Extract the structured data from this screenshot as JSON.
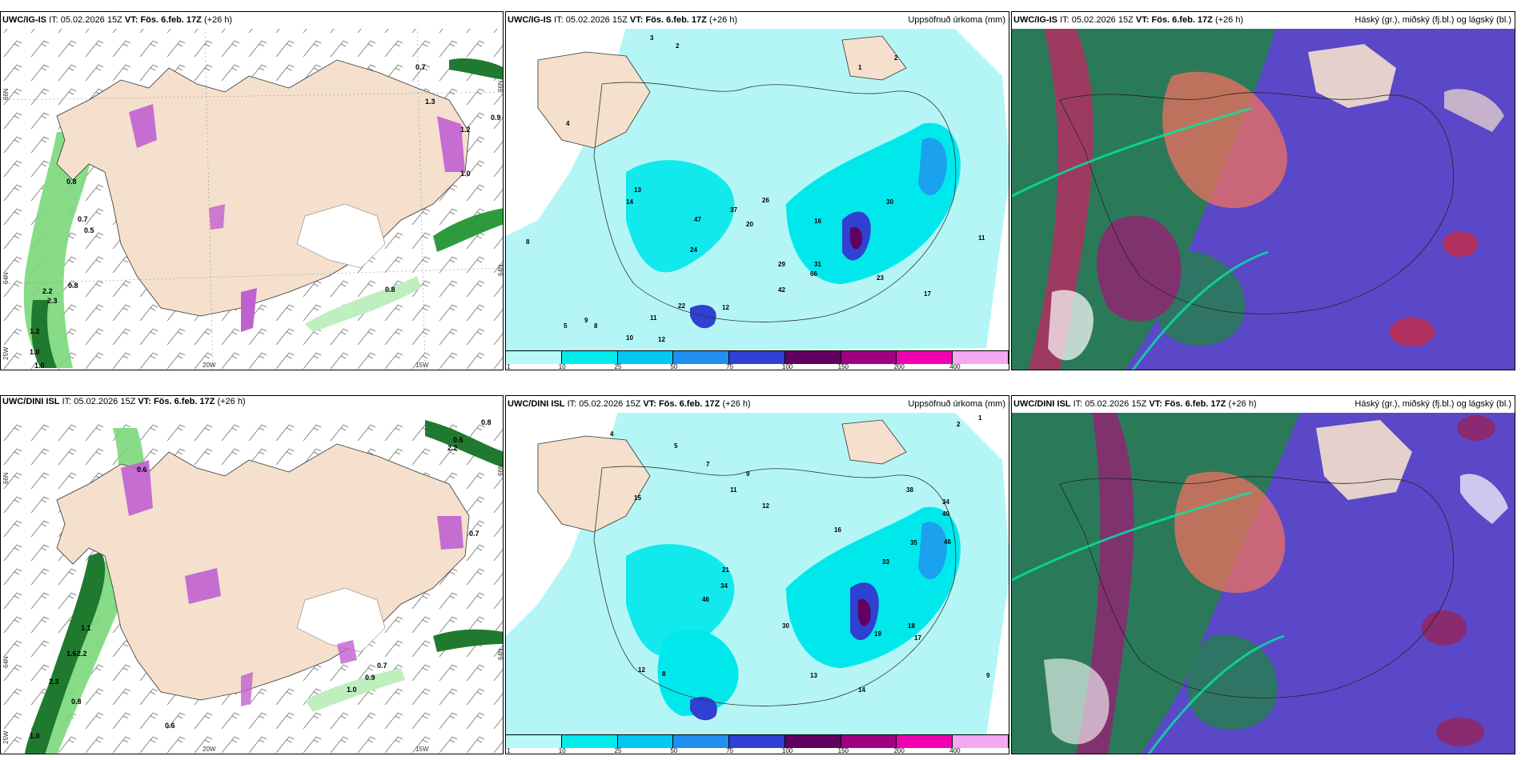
{
  "panels": {
    "p1": {
      "model": "UWC/IG-IS",
      "it_label": "IT:",
      "it": "05.02.2026 15Z",
      "vt_label": "VT:",
      "vt": "Fös. 6.feb. 17Z",
      "lead": "(+26 h)",
      "right": ""
    },
    "p2": {
      "model": "UWC/IG-IS",
      "it_label": "IT:",
      "it": "05.02.2026 15Z",
      "vt_label": "VT:",
      "vt": "Fös. 6.feb. 17Z",
      "lead": "(+26 h)",
      "right": "Uppsöfnuð úrkoma (mm)"
    },
    "p3": {
      "model": "UWC/IG-IS",
      "it_label": "IT:",
      "it": "05.02.2026 15Z",
      "vt_label": "VT:",
      "vt": "Fös. 6.feb. 17Z",
      "lead": "(+26 h)",
      "right": "Háský (gr.), miðský (fj.bl.) og lágský (bl.)"
    },
    "p4": {
      "model": "UWC/DINI ISL",
      "it_label": "IT:",
      "it": "05.02.2026 15Z",
      "vt_label": "VT:",
      "vt": "Fös. 6.feb. 17Z",
      "lead": "(+26 h)",
      "right": ""
    },
    "p5": {
      "model": "UWC/DINI ISL",
      "it_label": "IT:",
      "it": "05.02.2026 15Z",
      "vt_label": "VT:",
      "vt": "Fös. 6.feb. 17Z",
      "lead": "(+26 h)",
      "right": "Uppsöfnuð úrkoma (mm)"
    },
    "p6": {
      "model": "UWC/DINI ISL",
      "it_label": "IT:",
      "it": "05.02.2026 15Z",
      "vt_label": "VT:",
      "vt": "Fös. 6.feb. 17Z",
      "lead": "(+26 h)",
      "right": "Háský (gr.), miðský (fj.bl.) og lágský (bl.)"
    }
  },
  "graticule": {
    "lat_66": "66N",
    "lat_64": "64N",
    "lat_64b": "64N",
    "lat_66b": "66N",
    "lat_25": "25W",
    "lon_20": "20W",
    "lon_15": "15W"
  },
  "colorbar": {
    "labels": [
      "1",
      "10",
      "25",
      "50",
      "75",
      "100",
      "150",
      "200",
      "400"
    ],
    "colors": [
      "#b8f8f8",
      "#00ecec",
      "#00c8f0",
      "#2090f0",
      "#3040d0",
      "#600060",
      "#a00080",
      "#f000b0",
      "#f4a8f0"
    ]
  },
  "colors": {
    "land": "#f4e0cc",
    "precip_light": "#b4f6f6",
    "precip_mid": "#00e8ec",
    "low_cloud": "#5a48c8",
    "mid_cloud": "#f07060",
    "high_cloud": "#2a7a5a",
    "precip_green": "#7bd87b"
  },
  "p1_values": [
    "0.7",
    "1.3",
    "0.9",
    "1.2",
    "1.0",
    "0.8",
    "0.7",
    "0.5",
    "2.2",
    "2.3",
    "0.8",
    "1.2",
    "1.0",
    "1.0",
    "0.8"
  ],
  "p2_values": [
    "3",
    "2",
    "1",
    "2",
    "4",
    "8",
    "9",
    "11",
    "12",
    "13",
    "14",
    "47",
    "37",
    "26",
    "20",
    "24",
    "16",
    "22",
    "29",
    "31",
    "66",
    "42",
    "30",
    "23",
    "17",
    "11",
    "5",
    "8",
    "10",
    "12"
  ],
  "p4_values": [
    "0.8",
    "0.6",
    "2.2",
    "0.7",
    "0.6",
    "1.6",
    "2.2",
    "2.3",
    "1.1",
    "1.0",
    "0.9",
    "0.7",
    "1.0",
    "0.8",
    "0.6"
  ],
  "p5_values": [
    "2",
    "1",
    "4",
    "5",
    "7",
    "9",
    "15",
    "11",
    "12",
    "16",
    "38",
    "34",
    "49",
    "46",
    "35",
    "21",
    "46",
    "34",
    "33",
    "30",
    "19",
    "18",
    "17",
    "14",
    "8",
    "12",
    "13",
    "9"
  ]
}
